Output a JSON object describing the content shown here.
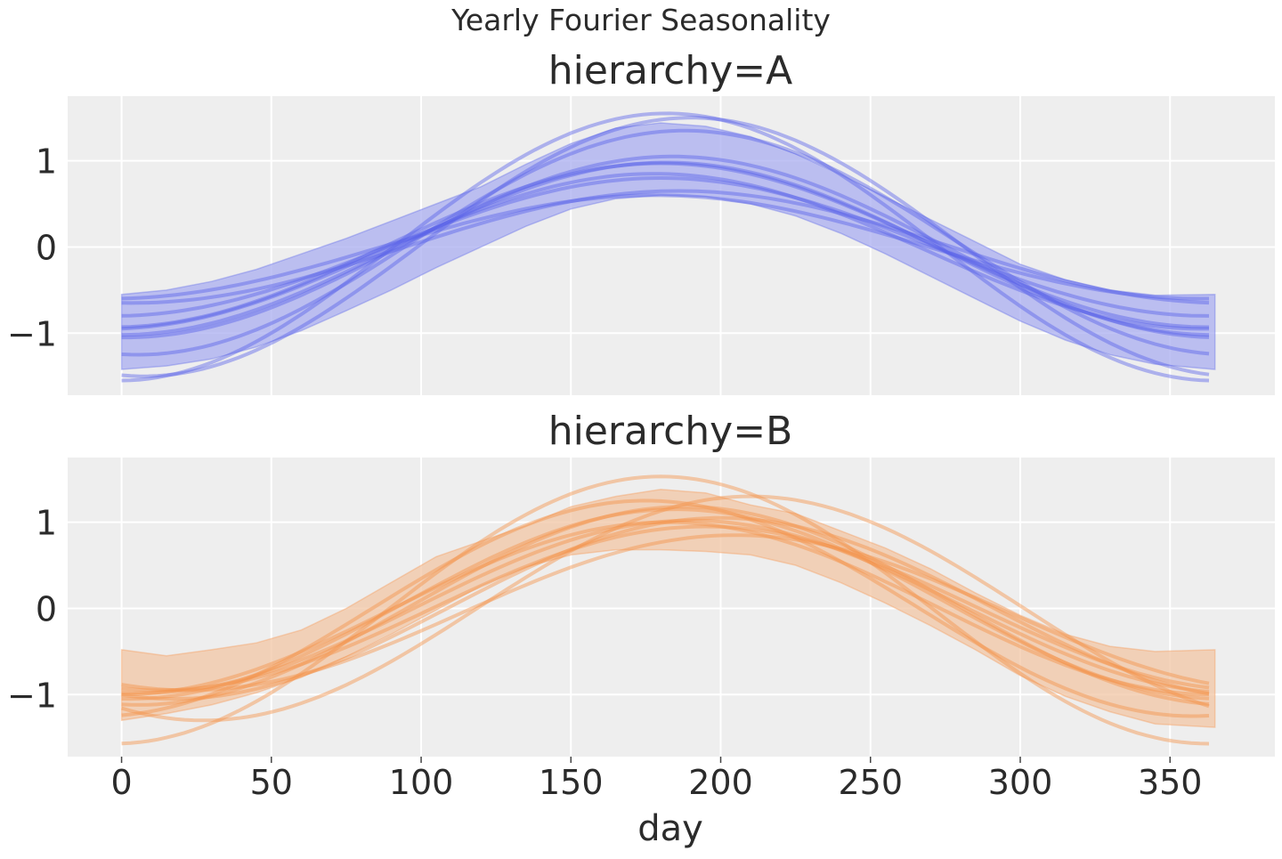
{
  "chart_data": {
    "type": "line",
    "suptitle": "Yearly Fourier Seasonality",
    "xlabel": "day",
    "ylabel": "",
    "xlim": [
      -18,
      385
    ],
    "ylim": [
      -1.72,
      1.75
    ],
    "x_ticks": [
      0,
      50,
      100,
      150,
      200,
      250,
      300,
      350
    ],
    "y_ticks": [
      {
        "value": 1,
        "label": "1"
      },
      {
        "value": 0,
        "label": "0"
      },
      {
        "value": -1,
        "label": "−1"
      }
    ],
    "grid": true,
    "legend": "none",
    "x": [
      0,
      15,
      30,
      45,
      60,
      75,
      90,
      105,
      120,
      135,
      150,
      165,
      180,
      195,
      210,
      225,
      240,
      255,
      270,
      285,
      300,
      315,
      330,
      345,
      365
    ],
    "panels": [
      {
        "title": "hierarchy=A",
        "color": "#5a63e8",
        "band_color": "#a9adf0",
        "band": {
          "lower": [
            -1.42,
            -1.38,
            -1.3,
            -1.16,
            -0.97,
            -0.74,
            -0.5,
            -0.24,
            0.0,
            0.24,
            0.44,
            0.56,
            0.6,
            0.58,
            0.5,
            0.36,
            0.16,
            -0.08,
            -0.34,
            -0.6,
            -0.86,
            -1.08,
            -1.25,
            -1.36,
            -1.42
          ],
          "upper": [
            -0.55,
            -0.5,
            -0.4,
            -0.26,
            -0.08,
            0.1,
            0.3,
            0.5,
            0.7,
            0.96,
            1.2,
            1.38,
            1.44,
            1.4,
            1.28,
            1.08,
            0.84,
            0.58,
            0.32,
            0.06,
            -0.2,
            -0.38,
            -0.5,
            -0.56,
            -0.55
          ]
        },
        "series": [
          {
            "amplitude": 1.0,
            "phase": 182,
            "offset": -0.02
          },
          {
            "amplitude": 0.95,
            "phase": 180,
            "offset": 0.02
          },
          {
            "amplitude": 0.9,
            "phase": 178,
            "offset": -0.05
          },
          {
            "amplitude": 1.05,
            "phase": 184,
            "offset": 0.0
          },
          {
            "amplitude": 1.55,
            "phase": 182,
            "offset": 0.0
          },
          {
            "amplitude": 1.5,
            "phase": 190,
            "offset": 0.0
          },
          {
            "amplitude": 0.8,
            "phase": 180,
            "offset": 0.0
          },
          {
            "amplitude": 0.65,
            "phase": 186,
            "offset": 0.0
          },
          {
            "amplitude": 1.3,
            "phase": 188,
            "offset": 0.05
          },
          {
            "amplitude": 0.6,
            "phase": 178,
            "offset": 0.0
          }
        ]
      },
      {
        "title": "hierarchy=B",
        "color": "#f5924a",
        "band_color": "#f2c6a4",
        "band": {
          "lower": [
            -1.3,
            -1.22,
            -1.12,
            -0.98,
            -0.8,
            -0.56,
            -0.3,
            -0.02,
            0.26,
            0.48,
            0.62,
            0.68,
            0.68,
            0.66,
            0.62,
            0.5,
            0.3,
            0.06,
            -0.2,
            -0.48,
            -0.78,
            -1.02,
            -1.2,
            -1.34,
            -1.38
          ],
          "upper": [
            -0.48,
            -0.55,
            -0.48,
            -0.4,
            -0.25,
            0.0,
            0.3,
            0.6,
            0.78,
            0.96,
            1.18,
            1.3,
            1.38,
            1.34,
            1.2,
            1.1,
            0.9,
            0.7,
            0.46,
            0.18,
            -0.08,
            -0.3,
            -0.44,
            -0.5,
            -0.48
          ]
        },
        "series": [
          {
            "amplitude": 1.0,
            "phase": 190,
            "offset": 0.02
          },
          {
            "amplitude": 1.1,
            "phase": 185,
            "offset": 0.05
          },
          {
            "amplitude": 1.55,
            "phase": 180,
            "offset": -0.02
          },
          {
            "amplitude": 1.05,
            "phase": 200,
            "offset": 0.0
          },
          {
            "amplitude": 0.95,
            "phase": 195,
            "offset": 0.0
          },
          {
            "amplitude": 1.25,
            "phase": 175,
            "offset": 0.0
          },
          {
            "amplitude": 0.9,
            "phase": 205,
            "offset": -0.05
          },
          {
            "amplitude": 1.0,
            "phase": 182,
            "offset": 0.0
          },
          {
            "amplitude": 1.3,
            "phase": 210,
            "offset": 0.0
          },
          {
            "amplitude": 1.15,
            "phase": 188,
            "offset": 0.03
          }
        ]
      }
    ]
  }
}
